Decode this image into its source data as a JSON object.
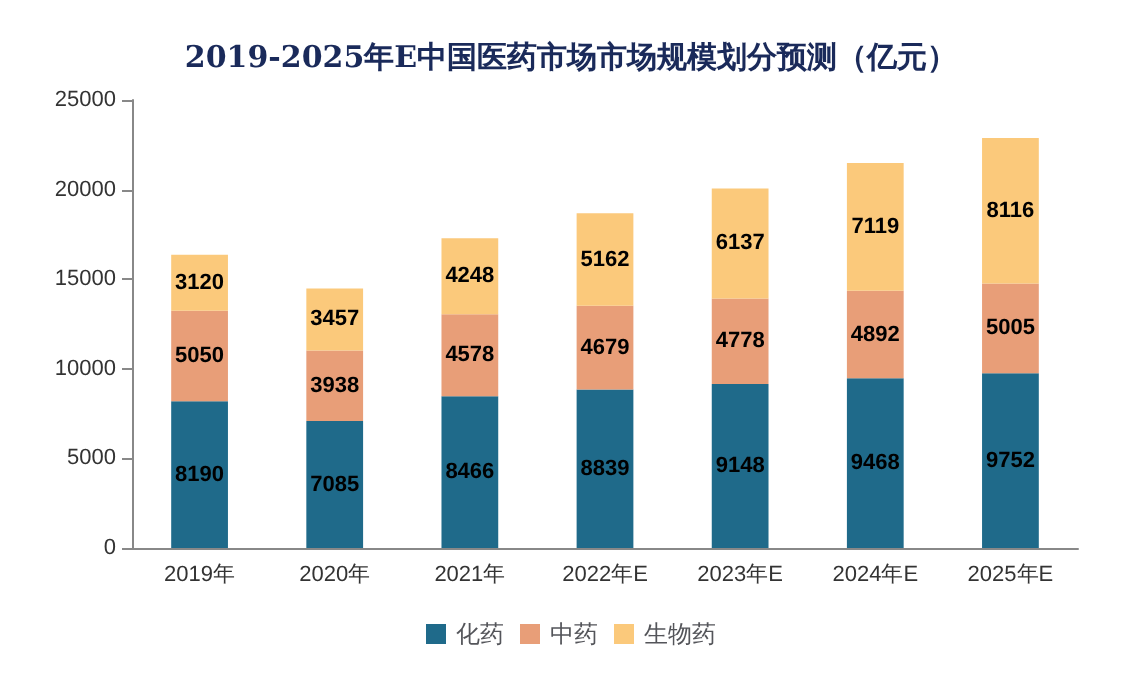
{
  "chart_data": {
    "type": "bar",
    "title": "2019-2025年E中国医药市场市场规模划分预测（亿元）",
    "categories": [
      "2019年",
      "2020年",
      "2021年",
      "2022年E",
      "2023年E",
      "2024年E",
      "2025年E"
    ],
    "stacked": true,
    "series": [
      {
        "name": "化药",
        "color": "#1f6a8a",
        "values": [
          8190,
          7085,
          8466,
          8839,
          9148,
          9468,
          9752
        ]
      },
      {
        "name": "中药",
        "color": "#e89e78",
        "values": [
          5050,
          3938,
          4578,
          4679,
          4778,
          4892,
          5005
        ]
      },
      {
        "name": "生物药",
        "color": "#fbc97b",
        "values": [
          3120,
          3457,
          4248,
          5162,
          6137,
          7119,
          8116
        ]
      }
    ],
    "ylim": [
      0,
      25000
    ],
    "yticks": [
      0,
      5000,
      10000,
      15000,
      20000,
      25000
    ],
    "grid": false,
    "legend": "bottom",
    "data_labels": true
  }
}
